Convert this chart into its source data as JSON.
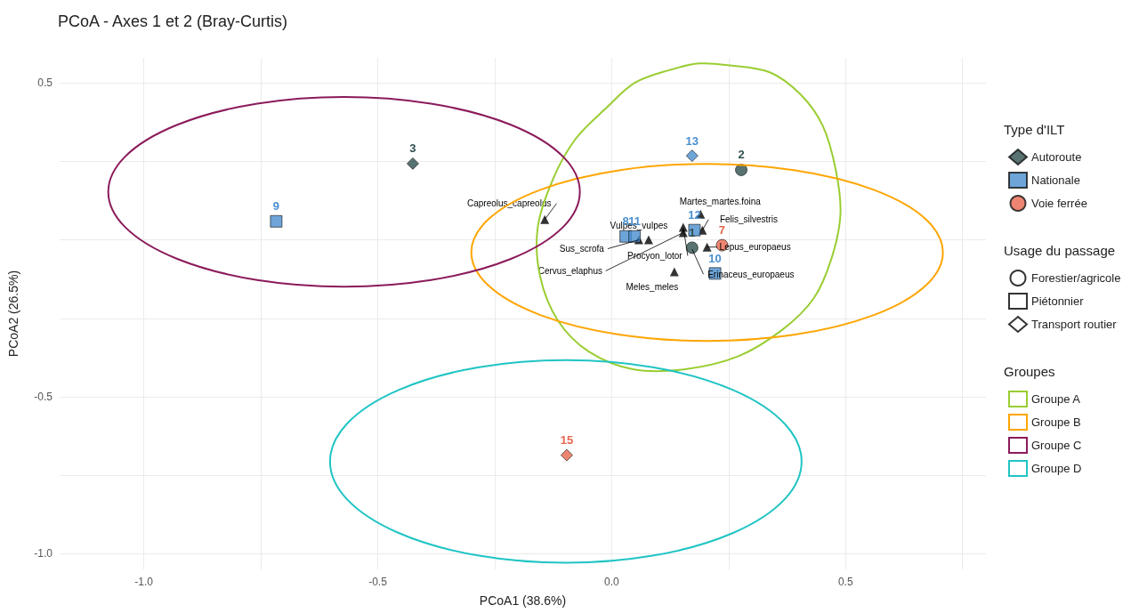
{
  "chart_data": {
    "type": "scatter",
    "title": "PCoA - Axes 1 et 2 (Bray-Curtis)",
    "xlabel": "PCoA1 (38.6%)",
    "ylabel": "PCoA2 (26.5%)",
    "legend_title": [
      "Type d'ILT",
      "Usage du passage",
      "Groupes"
    ],
    "xlim": [
      -1.18,
      0.8
    ],
    "ylim": [
      -1.05,
      0.58
    ],
    "xticks": [
      {
        "value": -1,
        "label": "-1.0"
      },
      {
        "value": -0.75,
        "label": null
      },
      {
        "value": -0.5,
        "label": "-0.5"
      },
      {
        "value": -0.25,
        "label": null
      },
      {
        "value": 0,
        "label": "0.0"
      },
      {
        "value": 0.25,
        "label": null
      },
      {
        "value": 0.5,
        "label": "0.5"
      },
      {
        "value": 0.75,
        "label": null
      }
    ],
    "yticks": [
      {
        "value": -1,
        "label": "-1.0"
      },
      {
        "value": -0.75,
        "label": null
      },
      {
        "value": -0.5,
        "label": "-0.5"
      },
      {
        "value": -0.25,
        "label": null
      },
      {
        "value": 0,
        "label": null
      },
      {
        "value": 0.25,
        "label": null
      },
      {
        "value": 0.5,
        "label": "0.5"
      }
    ],
    "grid": true,
    "legend": "right",
    "series": [
      {
        "name": "Groupe A",
        "type": "line",
        "color": "#9acd32"
      },
      {
        "name": "Groupe B",
        "type": "line",
        "color": "#ffa500"
      },
      {
        "name": "Groupe C",
        "type": "line",
        "color": "#8b1a5a"
      },
      {
        "name": "Groupe D",
        "type": "line",
        "color": "#20c4c4"
      },
      {
        "color": "#000000",
        "marker": "triangle",
        "x": [
          -0.143,
          0.058,
          0.153,
          0.079,
          0.153,
          0.19,
          0.194,
          0.204,
          0.172,
          0.134
        ],
        "values": [
          0.065,
          0.0,
          0.023,
          0.0,
          0.04,
          0.082,
          0.031,
          -0.023,
          null,
          -0.102
        ]
      },
      {
        "name": "Autoroute",
        "color": "#2f4f4f",
        "marker": [
          "diamond",
          "circle",
          "circle"
        ],
        "x": [
          -0.425,
          0.277,
          0.172
        ],
        "values": [
          0.243,
          0.223,
          -0.025
        ]
      },
      {
        "name": "Nationale",
        "color": "#4a8fd0",
        "marker": [
          "square",
          "diamond",
          "square",
          "square",
          "square",
          "square"
        ],
        "x": [
          -0.717,
          0.172,
          0.03,
          0.049,
          0.177,
          0.221
        ],
        "values": [
          0.059,
          0.268,
          0.011,
          0.011,
          0.031,
          -0.107
        ]
      },
      {
        "name": "Voie ferrée",
        "color": "#e8664f",
        "marker": [
          "circle",
          "diamond"
        ],
        "x": [
          0.236,
          -0.096
        ],
        "values": [
          -0.017,
          -0.686
        ]
      },
      {
        "name": "Forestier/agricole",
        "marker": "circle"
      },
      {
        "name": "Piétonnier",
        "marker": "square"
      },
      {
        "name": "Transport routier",
        "marker": "diamond"
      }
    ],
    "annotations": [
      {
        "text": "Capreolus_capreolus",
        "x": -0.143,
        "y": 0.065
      },
      {
        "text": "Sus_scrofa",
        "x": 0.058,
        "y": 0.0
      },
      {
        "text": "Cervus_elaphus",
        "x": 0.153,
        "y": 0.023
      },
      {
        "text": "Vulpes_vulpes",
        "x": 0.079,
        "y": 0.0
      },
      {
        "text": "Procyon_lotor",
        "x": 0.153,
        "y": 0.04
      },
      {
        "text": "Martes_martes.foina",
        "x": 0.19,
        "y": 0.082
      },
      {
        "text": "Felis_silvestris",
        "x": 0.194,
        "y": 0.031
      },
      {
        "text": "Lepus_europaeus",
        "x": 0.204,
        "y": -0.023
      },
      {
        "text": "Erinaceus_europaeus",
        "x": 0.172,
        "y": -0.03
      },
      {
        "text": "Meles_meles",
        "x": 0.134,
        "y": -0.102
      },
      {
        "text": "3",
        "x": -0.425,
        "y": 0.243
      },
      {
        "text": "2",
        "x": 0.277,
        "y": 0.223
      },
      {
        "text": "1",
        "x": 0.172,
        "y": -0.025
      },
      {
        "text": "9",
        "x": -0.717,
        "y": 0.059
      },
      {
        "text": "13",
        "x": 0.172,
        "y": 0.268
      },
      {
        "text": "8",
        "x": 0.03,
        "y": 0.011
      },
      {
        "text": "11",
        "x": 0.049,
        "y": 0.011
      },
      {
        "text": "12",
        "x": 0.177,
        "y": 0.031
      },
      {
        "text": "10",
        "x": 0.221,
        "y": -0.107
      },
      {
        "text": "7",
        "x": 0.236,
        "y": -0.017
      },
      {
        "text": "15",
        "x": -0.096,
        "y": -0.686
      }
    ]
  }
}
